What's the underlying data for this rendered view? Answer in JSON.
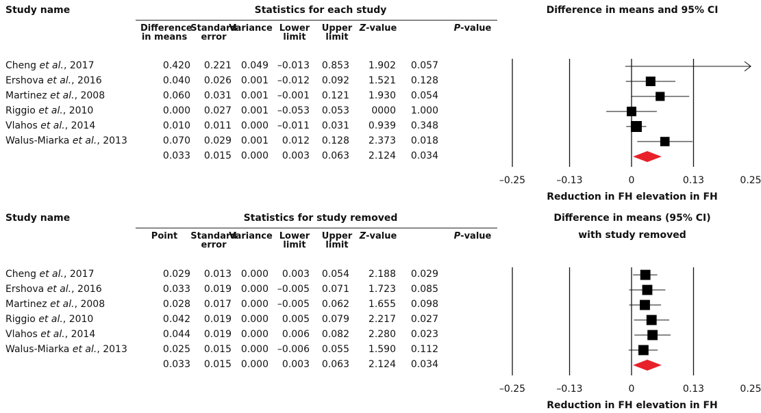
{
  "panels": [
    {
      "study_header": "Study name",
      "stats_header": "Statistics for each study",
      "plot_header_line1": "Difference in means and 95% CI",
      "plot_header_line2": "",
      "columns": [
        {
          "l1": "Difference",
          "l2": "in means"
        },
        {
          "l1": "Standard",
          "l2": "error"
        },
        {
          "l1": "Variance",
          "l2": ""
        },
        {
          "l1": "Lower",
          "l2": "limit"
        },
        {
          "l1": "Upper",
          "l2": "limit"
        },
        {
          "l1": "Z-value",
          "l2": ""
        },
        {
          "l1": "P-value",
          "l2": ""
        }
      ],
      "rows": [
        {
          "name": "Cheng",
          "etal": "et al.",
          "year": ", 2017",
          "vals": [
            "0.420",
            "0.221",
            "0.049",
            "–0.013",
            "0.853",
            "1.902",
            "0.057"
          ]
        },
        {
          "name": "Ershova",
          "etal": "et al.",
          "year": ", 2016",
          "vals": [
            "0.040",
            "0.026",
            "0.001",
            "–0.012",
            "0.092",
            "1.521",
            "0.128"
          ]
        },
        {
          "name": "Martinez",
          "etal": "et al.",
          "year": ", 2008",
          "vals": [
            "0.060",
            "0.031",
            "0.001",
            "–0.001",
            "0.121",
            "1.930",
            "0.054"
          ]
        },
        {
          "name": "Riggio",
          "etal": "et al.",
          "year": ", 2010",
          "vals": [
            "0.000",
            "0.027",
            "0.001",
            "–0.053",
            "0.053",
            "0000",
            "1.000"
          ]
        },
        {
          "name": "Vlahos",
          "etal": "et al.",
          "year": ", 2014",
          "vals": [
            "0.010",
            "0.011",
            "0.000",
            "–0.011",
            "0.031",
            "0.939",
            "0.348"
          ]
        },
        {
          "name": "Walus-Miarka",
          "etal": "et al.",
          "year": ", 2013",
          "vals": [
            "0.070",
            "0.029",
            "0.001",
            "0.012",
            "0.128",
            "2.373",
            "0.018"
          ]
        },
        {
          "name": "",
          "etal": "",
          "year": "",
          "vals": [
            "0.033",
            "0.015",
            "0.000",
            "0.003",
            "0.063",
            "2.124",
            "0.034"
          ]
        }
      ],
      "xticks": [
        "–0.25",
        "–0.13",
        "0",
        "0.13",
        "0.25"
      ],
      "xlabel": "Reduction in FH elevation in FH"
    },
    {
      "study_header": "Study name",
      "stats_header": "Statistics for study removed",
      "plot_header_line1": "Difference in means (95% CI)",
      "plot_header_line2": "with study removed",
      "columns": [
        {
          "l1": "Point",
          "l2": ""
        },
        {
          "l1": "Standard",
          "l2": "error"
        },
        {
          "l1": "Variance",
          "l2": ""
        },
        {
          "l1": "Lower",
          "l2": "limit"
        },
        {
          "l1": "Upper",
          "l2": "limit"
        },
        {
          "l1": "Z-value",
          "l2": ""
        },
        {
          "l1": "P-value",
          "l2": ""
        }
      ],
      "rows": [
        {
          "name": "Cheng",
          "etal": "et al.",
          "year": ", 2017",
          "vals": [
            "0.029",
            "0.013",
            "0.000",
            "0.003",
            "0.054",
            "2.188",
            "0.029"
          ]
        },
        {
          "name": "Ershova",
          "etal": "et al.",
          "year": ", 2016",
          "vals": [
            "0.033",
            "0.019",
            "0.000",
            "–0.005",
            "0.071",
            "1.723",
            "0.085"
          ]
        },
        {
          "name": "Martinez",
          "etal": "et al.",
          "year": ", 2008",
          "vals": [
            "0.028",
            "0.017",
            "0.000",
            "–0.005",
            "0.062",
            "1.655",
            "0.098"
          ]
        },
        {
          "name": "Riggio",
          "etal": "et al.",
          "year": ", 2010",
          "vals": [
            "0.042",
            "0.019",
            "0.000",
            "0.005",
            "0.079",
            "2.217",
            "0.027"
          ]
        },
        {
          "name": "Vlahos",
          "etal": "et al.",
          "year": ", 2014",
          "vals": [
            "0.044",
            "0.019",
            "0.000",
            "0.006",
            "0.082",
            "2.280",
            "0.023"
          ]
        },
        {
          "name": "Walus-Miarka",
          "etal": "et al.",
          "year": ", 2013",
          "vals": [
            "0.025",
            "0.015",
            "0.000",
            "–0.006",
            "0.055",
            "1.590",
            "0.112"
          ]
        },
        {
          "name": "",
          "etal": "",
          "year": "",
          "vals": [
            "0.033",
            "0.015",
            "0.000",
            "0.003",
            "0.063",
            "2.124",
            "0.034"
          ]
        }
      ],
      "xticks": [
        "–0.25",
        "–0.13",
        "0",
        "0.13",
        "0.25"
      ],
      "xlabel": "Reduction in FH elevation in FH"
    }
  ],
  "colors": {
    "summary_diamond": "#e8202a",
    "marker": "#000000"
  },
  "chart_data": [
    {
      "type": "forest",
      "xlim": [
        -0.25,
        0.25
      ],
      "xticks": [
        -0.25,
        -0.13,
        0,
        0.13,
        0.25
      ],
      "xlabel": "Reduction in FH elevation in FH",
      "studies": [
        {
          "study": "Cheng et al., 2017",
          "estimate": 0.42,
          "lower": -0.013,
          "upper": 0.853,
          "weight": 0.5
        },
        {
          "study": "Ershova et al., 2016",
          "estimate": 0.04,
          "lower": -0.012,
          "upper": 0.092,
          "weight": 1.0
        },
        {
          "study": "Martinez et al., 2008",
          "estimate": 0.06,
          "lower": -0.001,
          "upper": 0.121,
          "weight": 0.8
        },
        {
          "study": "Riggio et al., 2010",
          "estimate": 0.0,
          "lower": -0.053,
          "upper": 0.053,
          "weight": 1.0
        },
        {
          "study": "Vlahos et al., 2014",
          "estimate": 0.01,
          "lower": -0.011,
          "upper": 0.031,
          "weight": 1.5
        },
        {
          "study": "Walus-Miarka et al., 2013",
          "estimate": 0.07,
          "lower": 0.012,
          "upper": 0.128,
          "weight": 0.9
        }
      ],
      "summary": {
        "estimate": 0.033,
        "lower": 0.003,
        "upper": 0.063
      }
    },
    {
      "type": "forest",
      "xlim": [
        -0.25,
        0.25
      ],
      "xticks": [
        -0.25,
        -0.13,
        0,
        0.13,
        0.25
      ],
      "xlabel": "Reduction in FH elevation in FH",
      "studies": [
        {
          "study": "Cheng et al., 2017",
          "estimate": 0.029,
          "lower": 0.003,
          "upper": 0.054,
          "weight": 1.2
        },
        {
          "study": "Ershova et al., 2016",
          "estimate": 0.033,
          "lower": -0.005,
          "upper": 0.071,
          "weight": 1.2
        },
        {
          "study": "Martinez et al., 2008",
          "estimate": 0.028,
          "lower": -0.005,
          "upper": 0.062,
          "weight": 1.2
        },
        {
          "study": "Riggio et al., 2010",
          "estimate": 0.042,
          "lower": 0.005,
          "upper": 0.079,
          "weight": 1.2
        },
        {
          "study": "Vlahos et al., 2014",
          "estimate": 0.044,
          "lower": 0.006,
          "upper": 0.082,
          "weight": 1.2
        },
        {
          "study": "Walus-Miarka et al., 2013",
          "estimate": 0.025,
          "lower": -0.006,
          "upper": 0.055,
          "weight": 1.2
        }
      ],
      "summary": {
        "estimate": 0.033,
        "lower": 0.003,
        "upper": 0.063
      }
    }
  ]
}
